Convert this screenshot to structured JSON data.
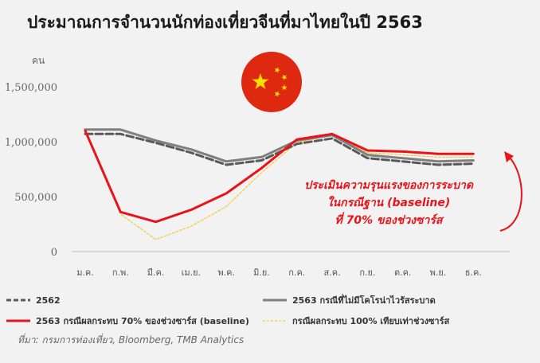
{
  "title": "ประมาณการจำนวนนักท่องเที่ยวจีนที่มาไทยในปี 2563",
  "source": "ที่มา: กรมการท่องเที่ยว, Bloomberg, TMB Analytics",
  "chart_data": {
    "type": "line",
    "ylabel": "คน",
    "ylim": [
      0,
      1600000
    ],
    "yticks": [
      0,
      500000,
      1000000,
      1500000
    ],
    "ytick_labels": [
      "0",
      "500,000",
      "1,000,000",
      "1,500,000"
    ],
    "categories": [
      "ม.ค.",
      "ก.พ.",
      "มี.ค.",
      "เม.ย.",
      "พ.ค.",
      "มิ.ย.",
      "ก.ค.",
      "ส.ค.",
      "ก.ย.",
      "ต.ค.",
      "พ.ย.",
      "ธ.ค."
    ],
    "series": [
      {
        "name": "2562",
        "color": "#595959",
        "style": "dashed",
        "values": [
          1070000,
          1070000,
          990000,
          900000,
          790000,
          830000,
          980000,
          1030000,
          850000,
          820000,
          790000,
          800000
        ]
      },
      {
        "name": "2563 กรณีที่ไม่มีโคโรน่าไวรัสระบาด",
        "color": "#7f7f7f",
        "style": "solid",
        "values": [
          1110000,
          1110000,
          1010000,
          930000,
          820000,
          860000,
          1010000,
          1060000,
          880000,
          850000,
          820000,
          830000
        ]
      },
      {
        "name": "2563 กรณีผลกระทบ 70% ของช่วงซาร์ส (baseline)",
        "color": "#e8141a",
        "style": "solid",
        "values": [
          1100000,
          360000,
          270000,
          380000,
          530000,
          760000,
          1020000,
          1070000,
          920000,
          910000,
          890000,
          890000
        ]
      },
      {
        "name": "กรณีผลกระทบ 100% เทียบเท่าช่วงซาร์ส",
        "color": "#f0c419",
        "style": "dotted",
        "values": [
          1100000,
          340000,
          110000,
          230000,
          410000,
          720000,
          990000,
          1060000,
          900000,
          880000,
          860000,
          860000
        ]
      }
    ],
    "annotation": [
      "ประเมินความรุนแรงของการระบาด",
      "ในกรณีฐาน (baseline)",
      "ที่ 70% ของช่วงซาร์ส"
    ],
    "annotation_color": "#e8141a",
    "legend_position": "bottom",
    "grid": false
  },
  "flag": {
    "name": "china-flag-icon",
    "background": "#de2910",
    "star_color": "#ffde00"
  }
}
